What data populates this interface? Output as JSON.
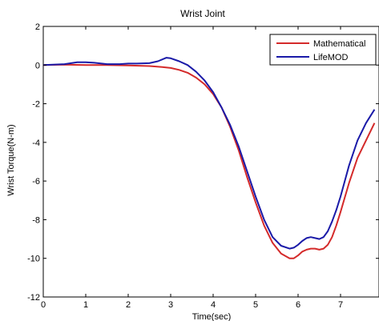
{
  "chart_data": {
    "type": "line",
    "title": "Wrist Joint",
    "xlabel": "Time(sec)",
    "ylabel": "Wrist Torque(N-m)",
    "xlim": [
      0,
      7.8
    ],
    "ylim": [
      -12,
      2
    ],
    "x_ticks": [
      "0",
      "1",
      "2",
      "3",
      "4",
      "5",
      "6",
      "7"
    ],
    "y_ticks": [
      "2",
      "0",
      "-2",
      "-4",
      "-6",
      "-8",
      "-10",
      "-12"
    ],
    "grid": false,
    "legend_position": "top-right",
    "series": [
      {
        "name": "Mathematical",
        "color": "#d42a2a",
        "points": [
          [
            0,
            0.0
          ],
          [
            0.5,
            0.02
          ],
          [
            1.0,
            0.0
          ],
          [
            1.5,
            0.0
          ],
          [
            2.0,
            -0.02
          ],
          [
            2.5,
            -0.05
          ],
          [
            2.8,
            -0.1
          ],
          [
            3.0,
            -0.15
          ],
          [
            3.2,
            -0.25
          ],
          [
            3.4,
            -0.4
          ],
          [
            3.6,
            -0.65
          ],
          [
            3.8,
            -1.0
          ],
          [
            4.0,
            -1.5
          ],
          [
            4.2,
            -2.2
          ],
          [
            4.4,
            -3.2
          ],
          [
            4.6,
            -4.4
          ],
          [
            4.8,
            -5.8
          ],
          [
            5.0,
            -7.1
          ],
          [
            5.2,
            -8.3
          ],
          [
            5.4,
            -9.2
          ],
          [
            5.6,
            -9.75
          ],
          [
            5.8,
            -10.0
          ],
          [
            5.9,
            -10.0
          ],
          [
            6.0,
            -9.85
          ],
          [
            6.1,
            -9.65
          ],
          [
            6.2,
            -9.55
          ],
          [
            6.3,
            -9.5
          ],
          [
            6.4,
            -9.5
          ],
          [
            6.5,
            -9.55
          ],
          [
            6.6,
            -9.5
          ],
          [
            6.7,
            -9.3
          ],
          [
            6.8,
            -8.9
          ],
          [
            6.9,
            -8.3
          ],
          [
            7.0,
            -7.6
          ],
          [
            7.2,
            -6.1
          ],
          [
            7.4,
            -4.8
          ],
          [
            7.6,
            -3.9
          ],
          [
            7.8,
            -3.0
          ]
        ]
      },
      {
        "name": "LifeMOD",
        "color": "#1a1aa8",
        "points": [
          [
            0,
            0.0
          ],
          [
            0.5,
            0.05
          ],
          [
            0.8,
            0.15
          ],
          [
            1.0,
            0.15
          ],
          [
            1.2,
            0.12
          ],
          [
            1.5,
            0.05
          ],
          [
            1.8,
            0.05
          ],
          [
            2.0,
            0.08
          ],
          [
            2.2,
            0.08
          ],
          [
            2.5,
            0.1
          ],
          [
            2.7,
            0.2
          ],
          [
            2.9,
            0.38
          ],
          [
            3.0,
            0.35
          ],
          [
            3.2,
            0.2
          ],
          [
            3.4,
            0.0
          ],
          [
            3.6,
            -0.35
          ],
          [
            3.8,
            -0.8
          ],
          [
            4.0,
            -1.4
          ],
          [
            4.2,
            -2.2
          ],
          [
            4.4,
            -3.1
          ],
          [
            4.6,
            -4.2
          ],
          [
            4.8,
            -5.5
          ],
          [
            5.0,
            -6.8
          ],
          [
            5.2,
            -8.0
          ],
          [
            5.4,
            -8.9
          ],
          [
            5.6,
            -9.35
          ],
          [
            5.8,
            -9.5
          ],
          [
            5.9,
            -9.45
          ],
          [
            6.0,
            -9.3
          ],
          [
            6.1,
            -9.1
          ],
          [
            6.2,
            -8.95
          ],
          [
            6.3,
            -8.9
          ],
          [
            6.4,
            -8.95
          ],
          [
            6.5,
            -9.0
          ],
          [
            6.6,
            -8.9
          ],
          [
            6.7,
            -8.6
          ],
          [
            6.8,
            -8.1
          ],
          [
            6.9,
            -7.5
          ],
          [
            7.0,
            -6.8
          ],
          [
            7.2,
            -5.2
          ],
          [
            7.4,
            -3.9
          ],
          [
            7.6,
            -3.0
          ],
          [
            7.8,
            -2.3
          ]
        ]
      }
    ]
  }
}
